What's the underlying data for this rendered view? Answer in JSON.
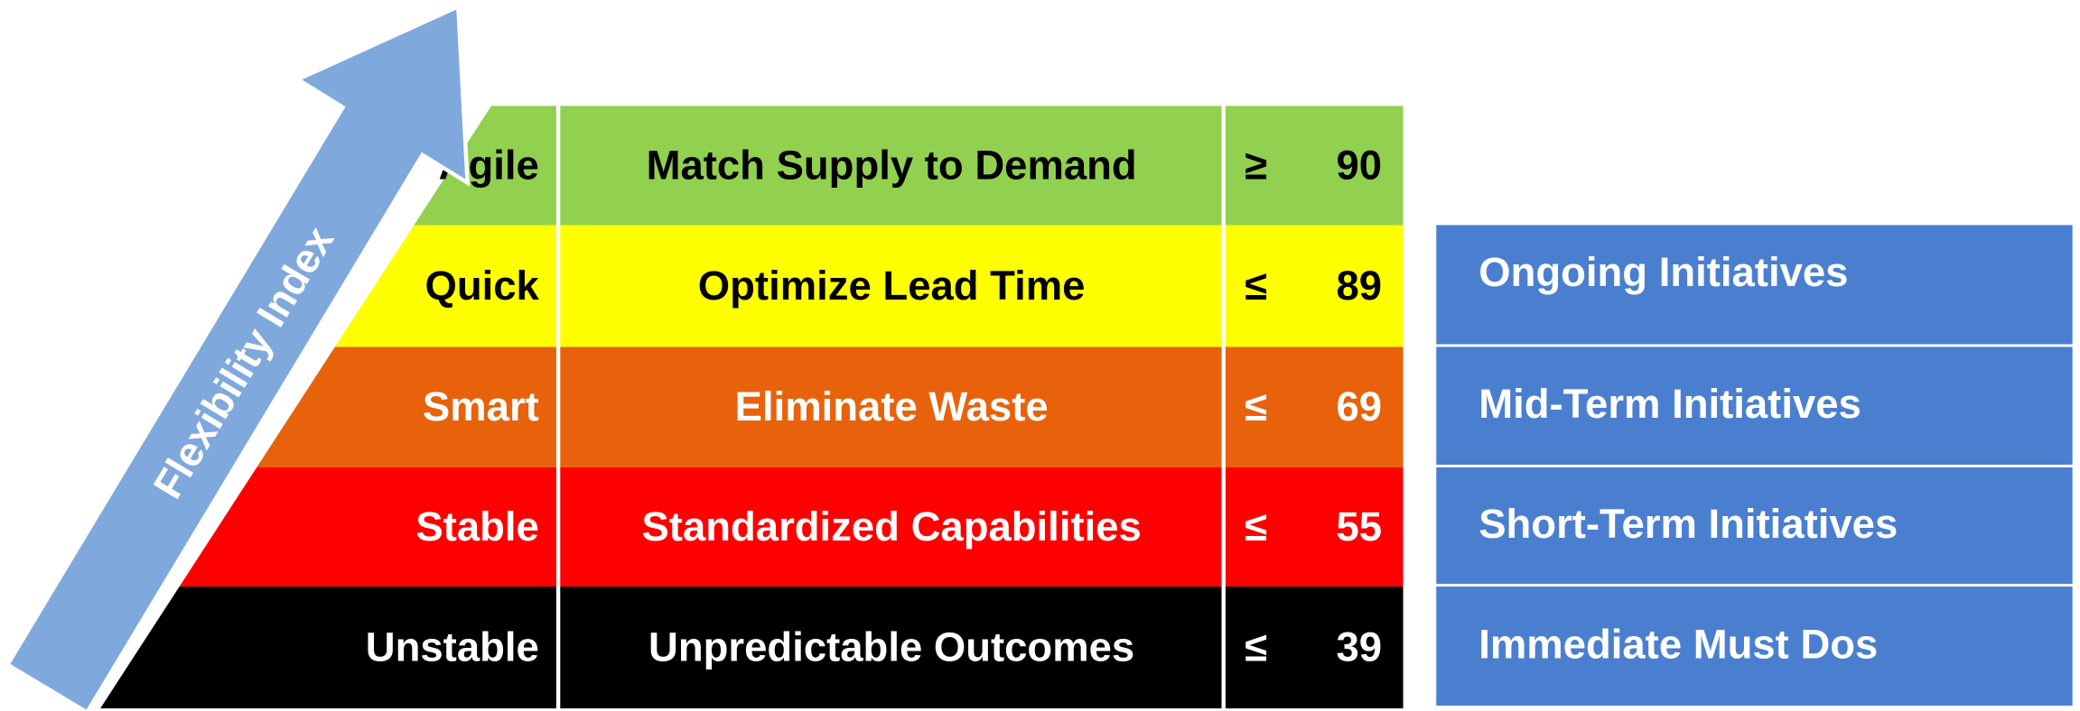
{
  "arrow_label": "Flexibility Index",
  "levels": [
    {
      "name": "Agile",
      "description": "Match Supply to Demand",
      "operator": "≥",
      "threshold": 90
    },
    {
      "name": "Quick",
      "description": "Optimize Lead Time",
      "operator": "≤",
      "threshold": 89
    },
    {
      "name": "Smart",
      "description": "Eliminate Waste",
      "operator": "≤",
      "threshold": 69
    },
    {
      "name": "Stable",
      "description": "Standardized Capabilities",
      "operator": "≤",
      "threshold": 55
    },
    {
      "name": "Unstable",
      "description": "Unpredictable Outcomes",
      "operator": "≤",
      "threshold": 39
    }
  ],
  "initiatives": [
    "Ongoing Initiatives",
    "Mid-Term Initiatives",
    "Short-Term Initiatives",
    "Immediate Must Dos"
  ]
}
